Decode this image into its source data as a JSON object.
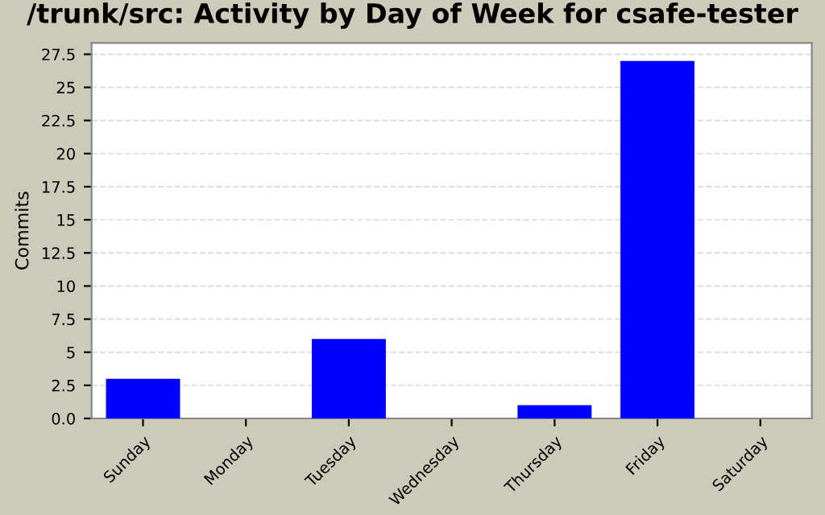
{
  "chart_data": {
    "type": "bar",
    "title": "/trunk/src: Activity by Day of Week for csafe-tester",
    "ylabel": "Commits",
    "categories": [
      "Sunday",
      "Monday",
      "Tuesday",
      "Wednesday",
      "Thursday",
      "Friday",
      "Saturday"
    ],
    "values": [
      3,
      0,
      6,
      0,
      1,
      27,
      0
    ],
    "color": "#0000ff",
    "ylim": [
      0,
      28.35
    ],
    "yticks": [
      {
        "value": 0,
        "label": "0.0"
      },
      2.5,
      5,
      7.5,
      10,
      12.5,
      15,
      17.5,
      20,
      22.5,
      25,
      27.5
    ],
    "grid": "y",
    "legend": false
  }
}
